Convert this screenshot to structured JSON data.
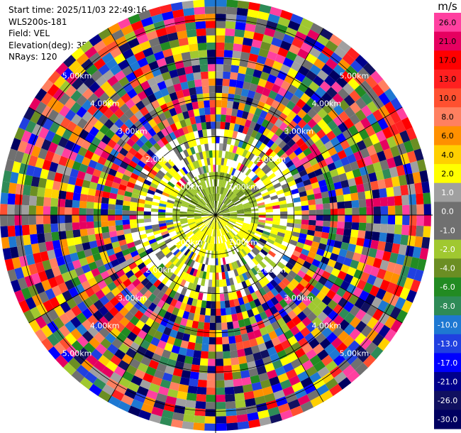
{
  "header": {
    "start_time": "Start time: 2025/11/03 22:49:16",
    "instrument": "WLS200s-181",
    "field": "Field: VEL",
    "elevation": "Elevation(deg): 35.00",
    "nrays": "NRays: 120"
  },
  "chart_data": {
    "type": "ppi",
    "field": "VEL",
    "unit": "m/s",
    "nrays": 120,
    "elevation_deg": 35.0,
    "range_rings_km": [
      1.0,
      2.0,
      3.0,
      4.0,
      5.0
    ],
    "range_ring_labels": [
      "1.00km",
      "2.00km",
      "3.00km",
      "4.00km",
      "5.00km"
    ],
    "max_range_km": 5.5,
    "azimuth_grid_deg": [
      0,
      30,
      60,
      90,
      120,
      150,
      180,
      210,
      240,
      270,
      300,
      330
    ],
    "colorbar": {
      "ticks": [
        "26.0",
        "21.0",
        "17.0",
        "13.0",
        "10.0",
        "8.0",
        "6.0",
        "4.0",
        "2.0",
        "1.0",
        "0.0",
        "-1.0",
        "-2.0",
        "-4.0",
        "-6.0",
        "-8.0",
        "-10.0",
        "-13.0",
        "-17.0",
        "-21.0",
        "-26.0",
        "-30.0"
      ],
      "colors": [
        "#ff40a0",
        "#e60060",
        "#ff0000",
        "#ff2020",
        "#ff5030",
        "#ff8060",
        "#ff9000",
        "#ffd000",
        "#ffff00",
        "#a0a0a0",
        "#707070",
        "#707070",
        "#a0c830",
        "#6b8e23",
        "#228b22",
        "#2e8b57",
        "#1e78d2",
        "#2040e0",
        "#0000ff",
        "#00008b",
        "#101060",
        "#000060"
      ]
    },
    "annotations": [
      "near-range region (0–1 km) dominated by light green and yellow (≈ -2 to +4 m/s)",
      "outer ranges appear noisy with mixed colors"
    ]
  }
}
